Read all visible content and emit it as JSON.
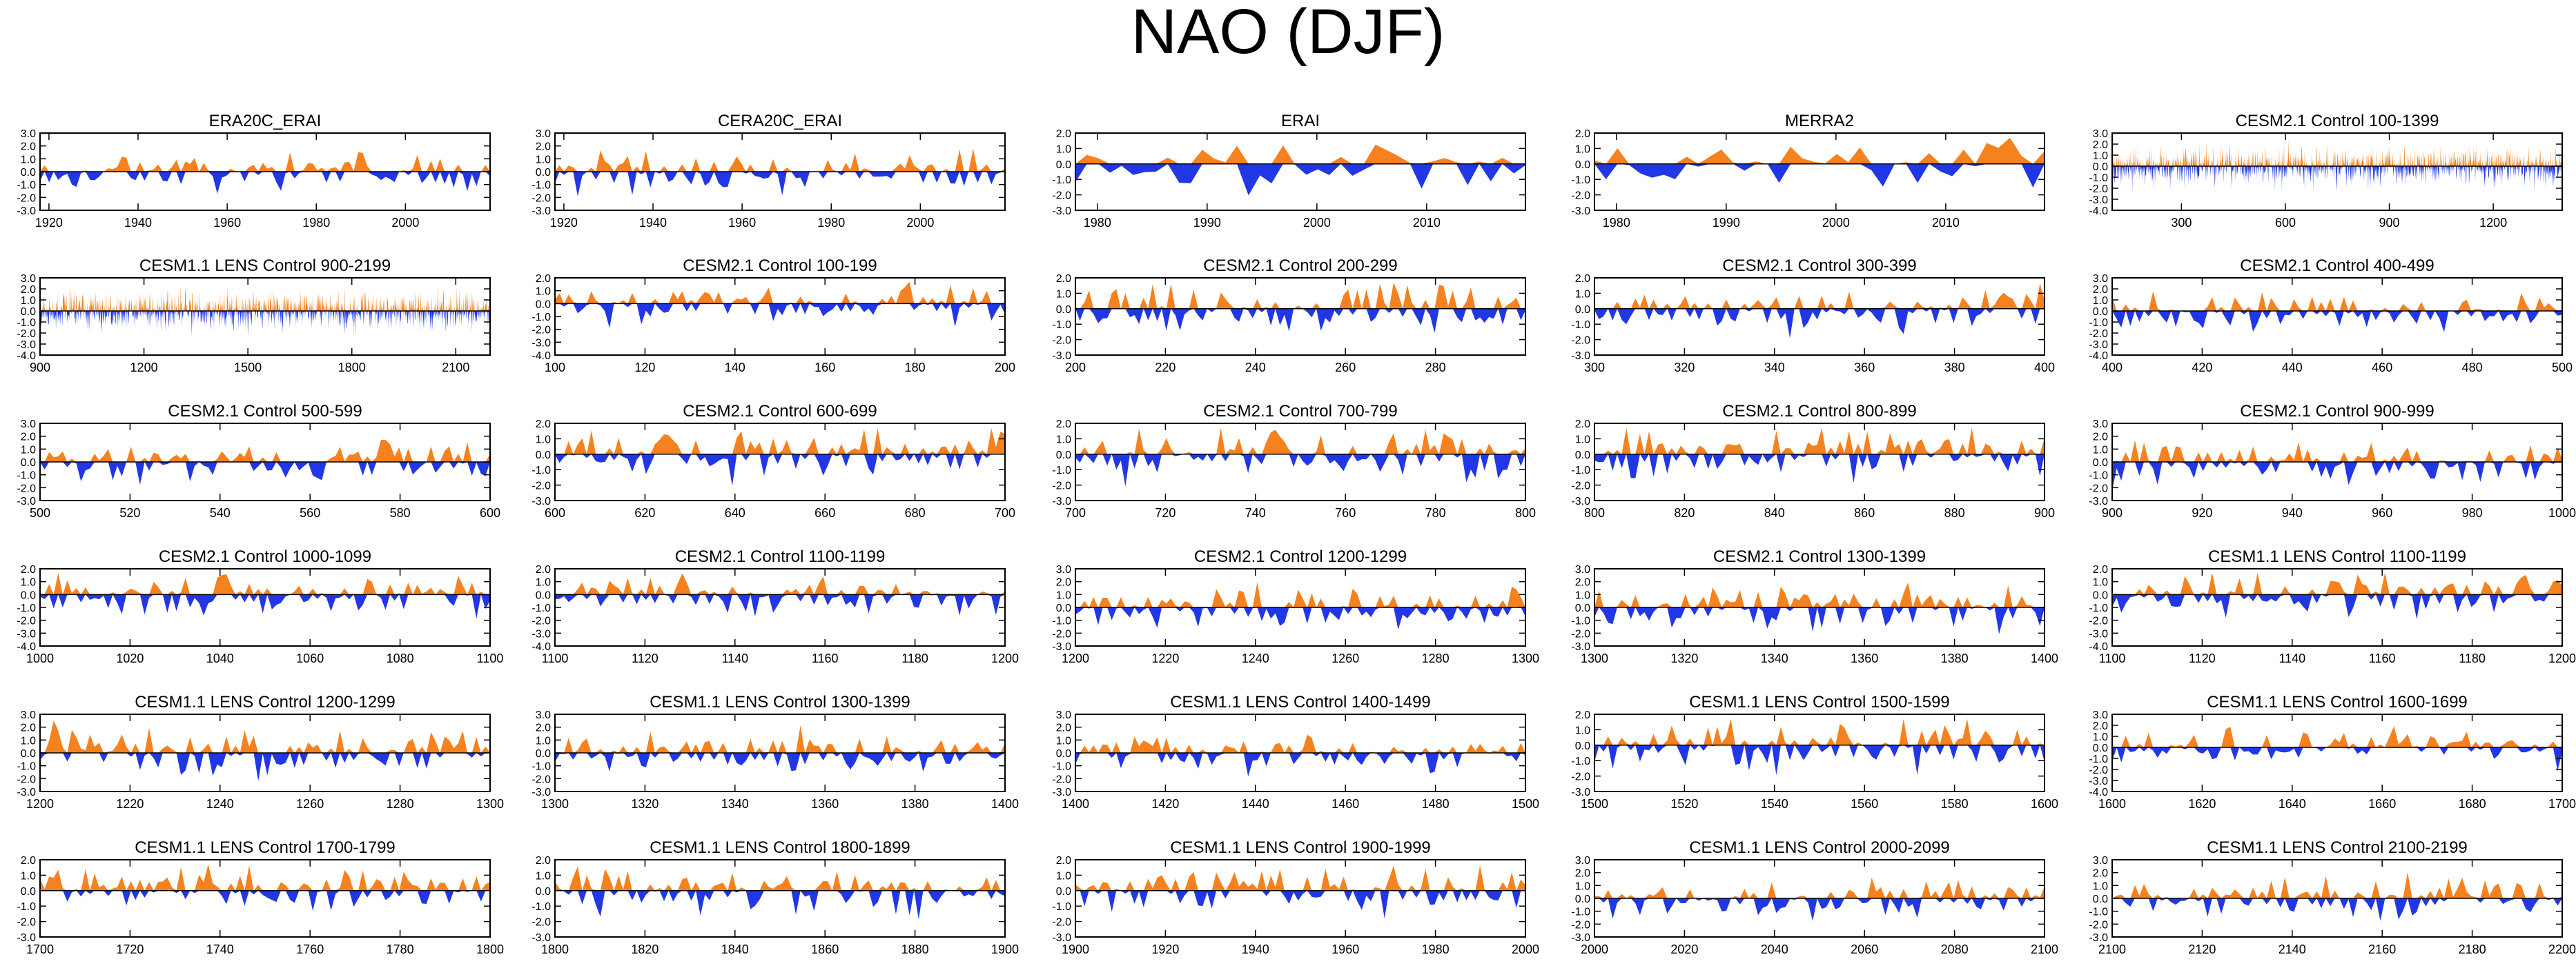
{
  "title": "NAO (DJF)",
  "colors": {
    "positive": "#f5821f",
    "negative": "#2137e6",
    "axis": "#000000"
  },
  "chart_data": [
    {
      "type": "area",
      "title": "ERA20C_ERAI",
      "xlim": [
        1918,
        2019
      ],
      "xticks": [
        1920,
        1940,
        1960,
        1980,
        2000
      ],
      "ylim": [
        -3,
        3
      ],
      "yticks": [
        3,
        2,
        1,
        0,
        -1,
        -2,
        -3
      ],
      "n": 100,
      "seed": 11,
      "amp": 0.9
    },
    {
      "type": "area",
      "title": "CERA20C_ERAI",
      "xlim": [
        1918,
        2019
      ],
      "xticks": [
        1920,
        1940,
        1960,
        1980,
        2000
      ],
      "ylim": [
        -3,
        3
      ],
      "yticks": [
        3,
        2,
        1,
        0,
        -1,
        -2,
        -3
      ],
      "n": 100,
      "seed": 12,
      "amp": 0.9
    },
    {
      "type": "area",
      "title": "ERAI",
      "xlim": [
        1978,
        2019
      ],
      "xticks": [
        1980,
        1990,
        2000,
        2010
      ],
      "ylim": [
        -3,
        2
      ],
      "yticks": [
        2,
        1,
        0,
        -1,
        -2,
        -3
      ],
      "n": 40,
      "seed": 13,
      "amp": 1.0
    },
    {
      "type": "area",
      "title": "MERRA2",
      "xlim": [
        1978,
        2019
      ],
      "xticks": [
        1980,
        1990,
        2000,
        2010
      ],
      "ylim": [
        -3,
        2
      ],
      "yticks": [
        2,
        1,
        0,
        -1,
        -2,
        -3
      ],
      "n": 40,
      "seed": 14,
      "amp": 1.0
    },
    {
      "type": "area",
      "title": "CESM2.1 Control 100-1399",
      "xlim": [
        100,
        1399
      ],
      "xticks": [
        300,
        600,
        900,
        1200
      ],
      "ylim": [
        -4,
        3
      ],
      "yticks": [
        3,
        2,
        1,
        0,
        -1,
        -2,
        -3,
        -4
      ],
      "n": 1300,
      "seed": 15,
      "amp": 1.1
    },
    {
      "type": "area",
      "title": "CESM1.1 LENS Control 900-2199",
      "xlim": [
        900,
        2199
      ],
      "xticks": [
        900,
        1200,
        1500,
        1800,
        2100
      ],
      "ylim": [
        -4,
        3
      ],
      "yticks": [
        3,
        2,
        1,
        0,
        -1,
        -2,
        -3,
        -4
      ],
      "n": 1300,
      "seed": 21,
      "amp": 1.1
    },
    {
      "type": "area",
      "title": "CESM2.1 Control 100-199",
      "xlim": [
        100,
        200
      ],
      "xticks": [
        100,
        120,
        140,
        160,
        180,
        200
      ],
      "ylim": [
        -4,
        2
      ],
      "yticks": [
        2,
        1,
        0,
        -1,
        -2,
        -3,
        -4
      ],
      "n": 100,
      "seed": 22,
      "amp": 1.0
    },
    {
      "type": "area",
      "title": "CESM2.1 Control 200-299",
      "xlim": [
        200,
        300
      ],
      "xticks": [
        200,
        220,
        240,
        260,
        280
      ],
      "ylim": [
        -3,
        2
      ],
      "yticks": [
        2,
        1,
        0,
        -1,
        -2,
        -3
      ],
      "n": 100,
      "seed": 23,
      "amp": 1.0
    },
    {
      "type": "area",
      "title": "CESM2.1 Control 300-399",
      "xlim": [
        300,
        400
      ],
      "xticks": [
        300,
        320,
        340,
        360,
        380,
        400
      ],
      "ylim": [
        -3,
        2
      ],
      "yticks": [
        2,
        1,
        0,
        -1,
        -2,
        -3
      ],
      "n": 100,
      "seed": 24,
      "amp": 0.9
    },
    {
      "type": "area",
      "title": "CESM2.1 Control 400-499",
      "xlim": [
        400,
        500
      ],
      "xticks": [
        400,
        420,
        440,
        460,
        480,
        500
      ],
      "ylim": [
        -4,
        3
      ],
      "yticks": [
        3,
        2,
        1,
        0,
        -1,
        -2,
        -3,
        -4
      ],
      "n": 100,
      "seed": 25,
      "amp": 1.0
    },
    {
      "type": "area",
      "title": "CESM2.1 Control 500-599",
      "xlim": [
        500,
        600
      ],
      "xticks": [
        500,
        520,
        540,
        560,
        580,
        600
      ],
      "ylim": [
        -3,
        3
      ],
      "yticks": [
        3,
        2,
        1,
        0,
        -1,
        -2,
        -3
      ],
      "n": 100,
      "seed": 31,
      "amp": 1.0
    },
    {
      "type": "area",
      "title": "CESM2.1 Control 600-699",
      "xlim": [
        600,
        700
      ],
      "xticks": [
        600,
        620,
        640,
        660,
        680,
        700
      ],
      "ylim": [
        -3,
        2
      ],
      "yticks": [
        2,
        1,
        0,
        -1,
        -2,
        -3
      ],
      "n": 100,
      "seed": 32,
      "amp": 1.0
    },
    {
      "type": "area",
      "title": "CESM2.1 Control 700-799",
      "xlim": [
        700,
        800
      ],
      "xticks": [
        700,
        720,
        740,
        760,
        780,
        800
      ],
      "ylim": [
        -3,
        2
      ],
      "yticks": [
        2,
        1,
        0,
        -1,
        -2,
        -3
      ],
      "n": 100,
      "seed": 33,
      "amp": 1.0
    },
    {
      "type": "area",
      "title": "CESM2.1 Control 800-899",
      "xlim": [
        800,
        900
      ],
      "xticks": [
        800,
        820,
        840,
        860,
        880,
        900
      ],
      "ylim": [
        -3,
        2
      ],
      "yticks": [
        2,
        1,
        0,
        -1,
        -2,
        -3
      ],
      "n": 100,
      "seed": 34,
      "amp": 1.0
    },
    {
      "type": "area",
      "title": "CESM2.1 Control 900-999",
      "xlim": [
        900,
        1000
      ],
      "xticks": [
        900,
        920,
        940,
        960,
        980,
        1000
      ],
      "ylim": [
        -3,
        3
      ],
      "yticks": [
        3,
        2,
        1,
        0,
        -1,
        -2,
        -3
      ],
      "n": 100,
      "seed": 35,
      "amp": 1.0
    },
    {
      "type": "area",
      "title": "CESM2.1 Control 1000-1099",
      "xlim": [
        1000,
        1100
      ],
      "xticks": [
        1000,
        1020,
        1040,
        1060,
        1080,
        1100
      ],
      "ylim": [
        -4,
        2
      ],
      "yticks": [
        2,
        1,
        0,
        -1,
        -2,
        -3,
        -4
      ],
      "n": 100,
      "seed": 41,
      "amp": 1.0
    },
    {
      "type": "area",
      "title": "CESM2.1 Control 1100-1199",
      "xlim": [
        1100,
        1200
      ],
      "xticks": [
        1100,
        1120,
        1140,
        1160,
        1180,
        1200
      ],
      "ylim": [
        -4,
        2
      ],
      "yticks": [
        2,
        1,
        0,
        -1,
        -2,
        -3,
        -4
      ],
      "n": 100,
      "seed": 42,
      "amp": 1.0
    },
    {
      "type": "area",
      "title": "CESM2.1 Control 1200-1299",
      "xlim": [
        1200,
        1300
      ],
      "xticks": [
        1200,
        1220,
        1240,
        1260,
        1280,
        1300
      ],
      "ylim": [
        -3,
        3
      ],
      "yticks": [
        3,
        2,
        1,
        0,
        -1,
        -2,
        -3
      ],
      "n": 100,
      "seed": 43,
      "amp": 1.0
    },
    {
      "type": "area",
      "title": "CESM2.1 Control 1300-1399",
      "xlim": [
        1300,
        1400
      ],
      "xticks": [
        1300,
        1320,
        1340,
        1360,
        1380,
        1400
      ],
      "ylim": [
        -3,
        3
      ],
      "yticks": [
        3,
        2,
        1,
        0,
        -1,
        -2,
        -3
      ],
      "n": 100,
      "seed": 44,
      "amp": 1.0
    },
    {
      "type": "area",
      "title": "CESM1.1 LENS Control 1100-1199",
      "xlim": [
        1100,
        1200
      ],
      "xticks": [
        1100,
        1120,
        1140,
        1160,
        1180,
        1200
      ],
      "ylim": [
        -4,
        2
      ],
      "yticks": [
        2,
        1,
        0,
        -1,
        -2,
        -3,
        -4
      ],
      "n": 100,
      "seed": 45,
      "amp": 1.0
    },
    {
      "type": "area",
      "title": "CESM1.1 LENS Control 1200-1299",
      "xlim": [
        1200,
        1300
      ],
      "xticks": [
        1200,
        1220,
        1240,
        1260,
        1280,
        1300
      ],
      "ylim": [
        -3,
        3
      ],
      "yticks": [
        3,
        2,
        1,
        0,
        -1,
        -2,
        -3
      ],
      "n": 100,
      "seed": 51,
      "amp": 1.1
    },
    {
      "type": "area",
      "title": "CESM1.1 LENS Control 1300-1399",
      "xlim": [
        1300,
        1400
      ],
      "xticks": [
        1300,
        1320,
        1340,
        1360,
        1380,
        1400
      ],
      "ylim": [
        -3,
        3
      ],
      "yticks": [
        3,
        2,
        1,
        0,
        -1,
        -2,
        -3
      ],
      "n": 100,
      "seed": 52,
      "amp": 1.0
    },
    {
      "type": "area",
      "title": "CESM1.1 LENS Control 1400-1499",
      "xlim": [
        1400,
        1500
      ],
      "xticks": [
        1400,
        1420,
        1440,
        1460,
        1480,
        1500
      ],
      "ylim": [
        -3,
        3
      ],
      "yticks": [
        3,
        2,
        1,
        0,
        -1,
        -2,
        -3
      ],
      "n": 100,
      "seed": 53,
      "amp": 1.0
    },
    {
      "type": "area",
      "title": "CESM1.1 LENS Control 1500-1599",
      "xlim": [
        1500,
        1600
      ],
      "xticks": [
        1500,
        1520,
        1540,
        1560,
        1580,
        1600
      ],
      "ylim": [
        -3,
        2
      ],
      "yticks": [
        2,
        1,
        0,
        -1,
        -2,
        -3
      ],
      "n": 100,
      "seed": 54,
      "amp": 1.0
    },
    {
      "type": "area",
      "title": "CESM1.1 LENS Control 1600-1699",
      "xlim": [
        1600,
        1700
      ],
      "xticks": [
        1600,
        1620,
        1640,
        1660,
        1680,
        1700
      ],
      "ylim": [
        -4,
        3
      ],
      "yticks": [
        3,
        2,
        1,
        0,
        -1,
        -2,
        -3,
        -4
      ],
      "n": 100,
      "seed": 55,
      "amp": 1.0
    },
    {
      "type": "area",
      "title": "CESM1.1 LENS Control 1700-1799",
      "xlim": [
        1700,
        1800
      ],
      "xticks": [
        1700,
        1720,
        1740,
        1760,
        1780,
        1800
      ],
      "ylim": [
        -3,
        2
      ],
      "yticks": [
        2,
        1,
        0,
        -1,
        -2,
        -3
      ],
      "n": 100,
      "seed": 61,
      "amp": 1.0
    },
    {
      "type": "area",
      "title": "CESM1.1 LENS Control 1800-1899",
      "xlim": [
        1800,
        1900
      ],
      "xticks": [
        1800,
        1820,
        1840,
        1860,
        1880,
        1900
      ],
      "ylim": [
        -3,
        2
      ],
      "yticks": [
        2,
        1,
        0,
        -1,
        -2,
        -3
      ],
      "n": 100,
      "seed": 62,
      "amp": 1.0
    },
    {
      "type": "area",
      "title": "CESM1.1 LENS Control 1900-1999",
      "xlim": [
        1900,
        2000
      ],
      "xticks": [
        1900,
        1920,
        1940,
        1960,
        1980,
        2000
      ],
      "ylim": [
        -3,
        2
      ],
      "yticks": [
        2,
        1,
        0,
        -1,
        -2,
        -3
      ],
      "n": 100,
      "seed": 63,
      "amp": 1.0
    },
    {
      "type": "area",
      "title": "CESM1.1 LENS Control 2000-2099",
      "xlim": [
        2000,
        2100
      ],
      "xticks": [
        2000,
        2020,
        2040,
        2060,
        2080,
        2100
      ],
      "ylim": [
        -3,
        3
      ],
      "yticks": [
        3,
        2,
        1,
        0,
        -1,
        -2,
        -3
      ],
      "n": 100,
      "seed": 64,
      "amp": 0.9
    },
    {
      "type": "area",
      "title": "CESM1.1 LENS Control 2100-2199",
      "xlim": [
        2100,
        2200
      ],
      "xticks": [
        2100,
        2120,
        2140,
        2160,
        2180,
        2200
      ],
      "ylim": [
        -3,
        3
      ],
      "yticks": [
        3,
        2,
        1,
        0,
        -1,
        -2,
        -3
      ],
      "n": 100,
      "seed": 65,
      "amp": 1.0
    }
  ]
}
